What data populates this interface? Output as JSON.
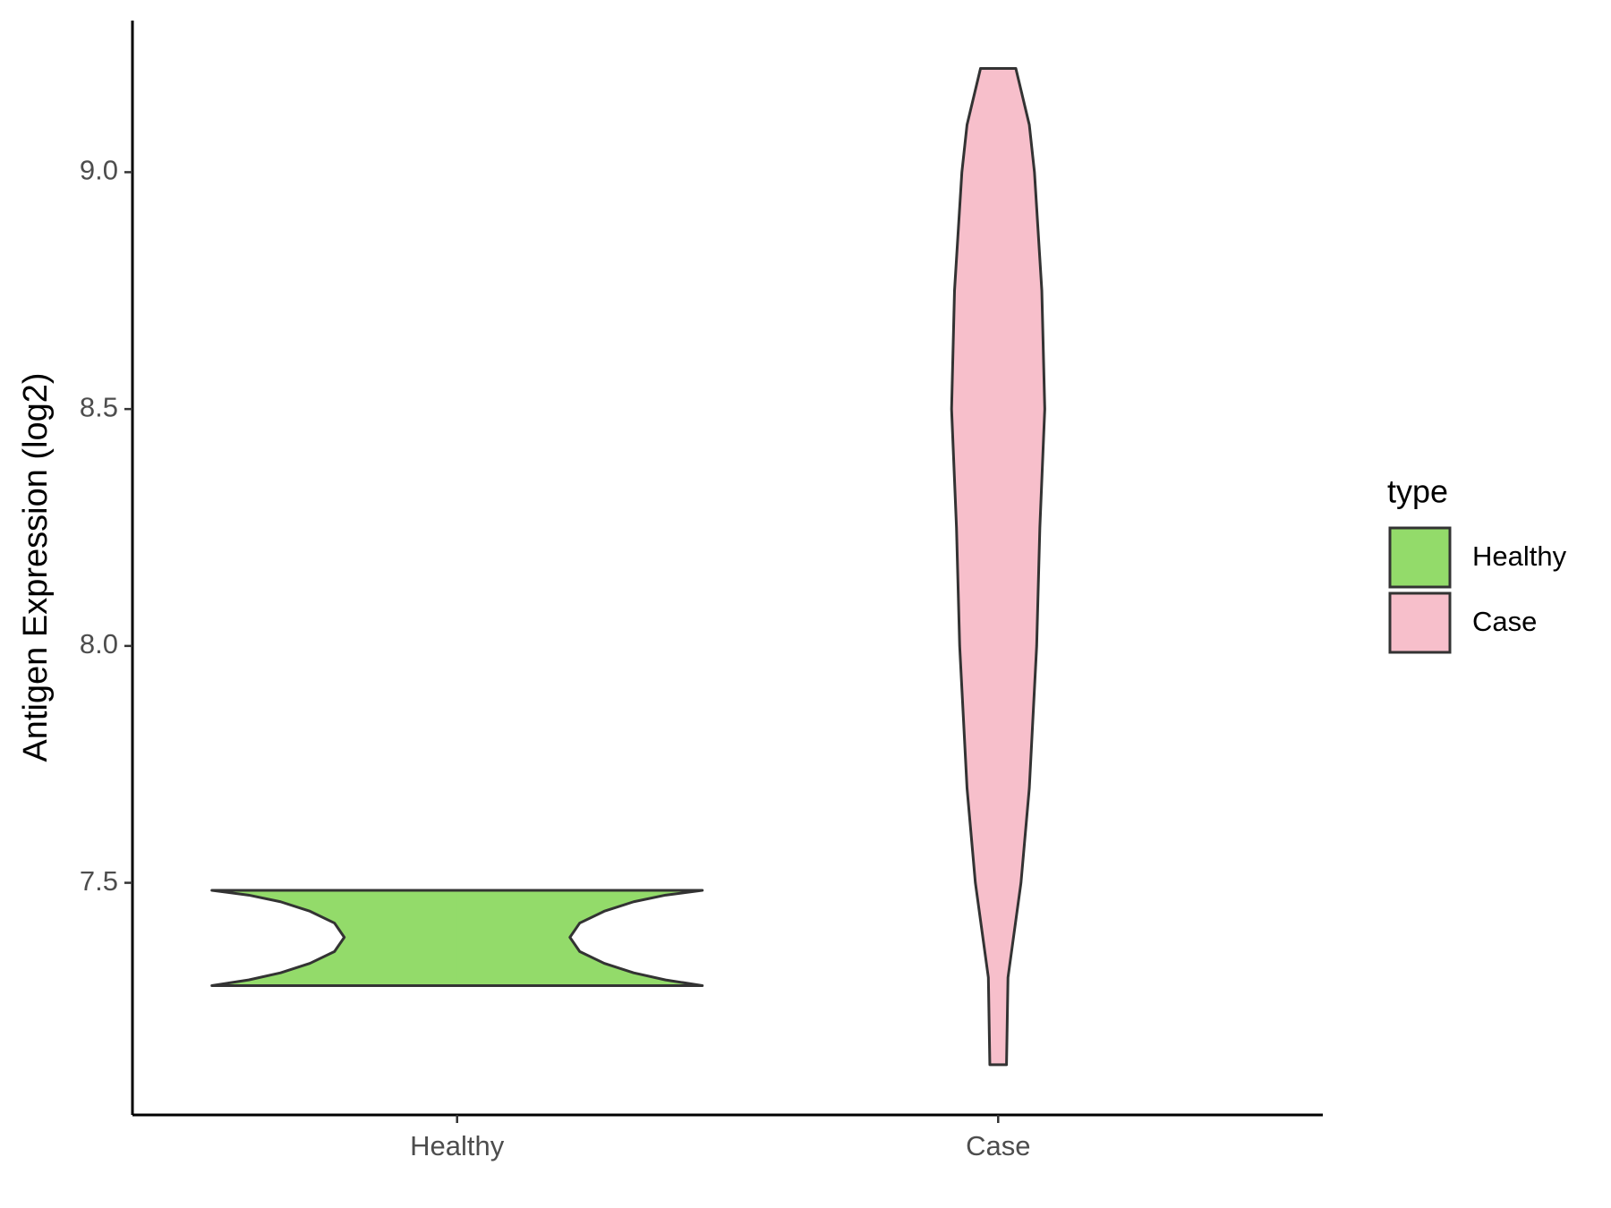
{
  "chart_data": {
    "type": "violin",
    "y_label": "Antigen Expression (log2)",
    "categories": [
      "Healthy",
      "Case"
    ],
    "ylim": [
      7.01,
      9.32
    ],
    "yticks": [
      {
        "value": 7.5,
        "label": "7.5"
      },
      {
        "value": 8.0,
        "label": "8.0"
      },
      {
        "value": 8.5,
        "label": "8.5"
      },
      {
        "value": 9.0,
        "label": "9.0"
      }
    ],
    "legend_title": "type",
    "legend_position": "right",
    "series": [
      {
        "name": "Healthy",
        "color": "#93db6a",
        "y": [
          7.283,
          7.295,
          7.31,
          7.33,
          7.355,
          7.385,
          7.415,
          7.44,
          7.46,
          7.474,
          7.484
        ],
        "density": [
          1.0,
          0.85,
          0.72,
          0.6,
          0.5,
          0.46,
          0.5,
          0.6,
          0.72,
          0.85,
          1.0
        ]
      },
      {
        "name": "Case",
        "color": "#f7bfcb",
        "y": [
          7.116,
          7.3,
          7.5,
          7.7,
          8.0,
          8.25,
          8.5,
          8.75,
          9.0,
          9.1,
          9.219
        ],
        "density": [
          0.034,
          0.04,
          0.093,
          0.127,
          0.157,
          0.17,
          0.19,
          0.178,
          0.148,
          0.127,
          0.072
        ]
      }
    ]
  }
}
